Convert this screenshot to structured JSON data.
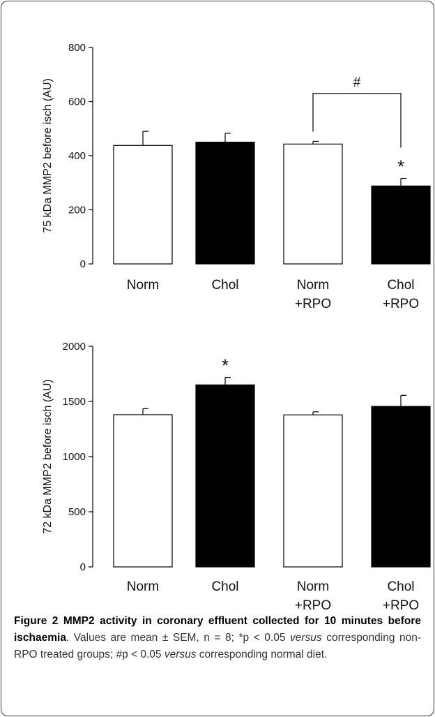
{
  "chart_data": [
    {
      "type": "bar",
      "ylabel": "75 kDa MMP2 before isch (AU)",
      "ylim": [
        0,
        800
      ],
      "yticks": [
        0,
        200,
        400,
        600,
        800
      ],
      "categories": [
        {
          "line1": "Norm",
          "line2": ""
        },
        {
          "line1": "Chol",
          "line2": ""
        },
        {
          "line1": "Norm",
          "line2": "+RPO"
        },
        {
          "line1": "Chol",
          "line2": "+RPO"
        }
      ],
      "values": [
        438,
        450,
        443,
        288
      ],
      "errors": [
        52,
        33,
        10,
        28
      ],
      "fills": [
        "#ffffff",
        "#000000",
        "#ffffff",
        "#000000"
      ],
      "stars": [
        "",
        "",
        "",
        "*"
      ],
      "bracket": {
        "from": 2,
        "to": 3,
        "label": "#",
        "at": 630
      }
    },
    {
      "type": "bar",
      "ylabel": "72 kDa MMP2 before isch (AU)",
      "ylim": [
        0,
        2000
      ],
      "yticks": [
        0,
        500,
        1000,
        1500,
        2000
      ],
      "categories": [
        {
          "line1": "Norm",
          "line2": ""
        },
        {
          "line1": "Chol",
          "line2": ""
        },
        {
          "line1": "Norm",
          "line2": "+RPO"
        },
        {
          "line1": "Chol",
          "line2": "+RPO"
        }
      ],
      "values": [
        1380,
        1650,
        1378,
        1455
      ],
      "errors": [
        55,
        68,
        28,
        100
      ],
      "fills": [
        "#ffffff",
        "#000000",
        "#ffffff",
        "#000000"
      ],
      "stars": [
        "",
        "*",
        "",
        ""
      ]
    }
  ],
  "caption": {
    "bold": "Figure 2 MMP2 activity in coronary effluent collected for 10 minutes before ischaemia",
    "t1": ". Values are mean ± SEM, n = 8; *p < 0.05 ",
    "i1": "versus",
    "t2": " corresponding non-RPO treated groups; #p < 0.05 ",
    "i2": "versus",
    "t3": " corresponding normal diet."
  }
}
